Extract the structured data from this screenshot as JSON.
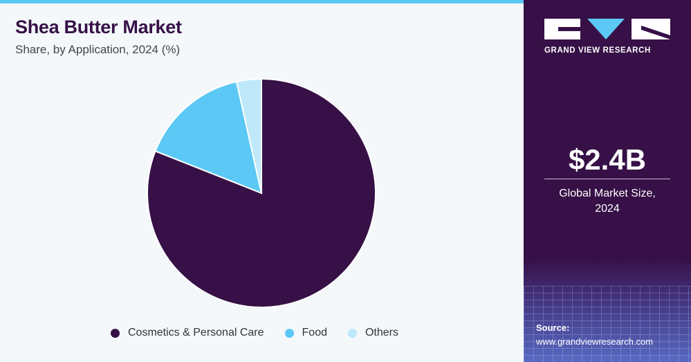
{
  "header": {
    "title": "Shea Butter Market",
    "subtitle": "Share, by Application, 2024 (%)"
  },
  "chart_data": {
    "type": "pie",
    "categories": [
      "Cosmetics & Personal Care",
      "Food",
      "Others"
    ],
    "values": [
      81,
      15.5,
      3.5
    ],
    "colors": [
      "#361046",
      "#5cc8f5",
      "#bfe8fb"
    ],
    "legend_position": "bottom"
  },
  "sidebar": {
    "brand": "GRAND VIEW RESEARCH",
    "market_size": "$2.4B",
    "market_label_line1": "Global Market Size,",
    "market_label_line2": "2024",
    "source_label": "Source:",
    "source_url": "www.grandviewresearch.com"
  }
}
